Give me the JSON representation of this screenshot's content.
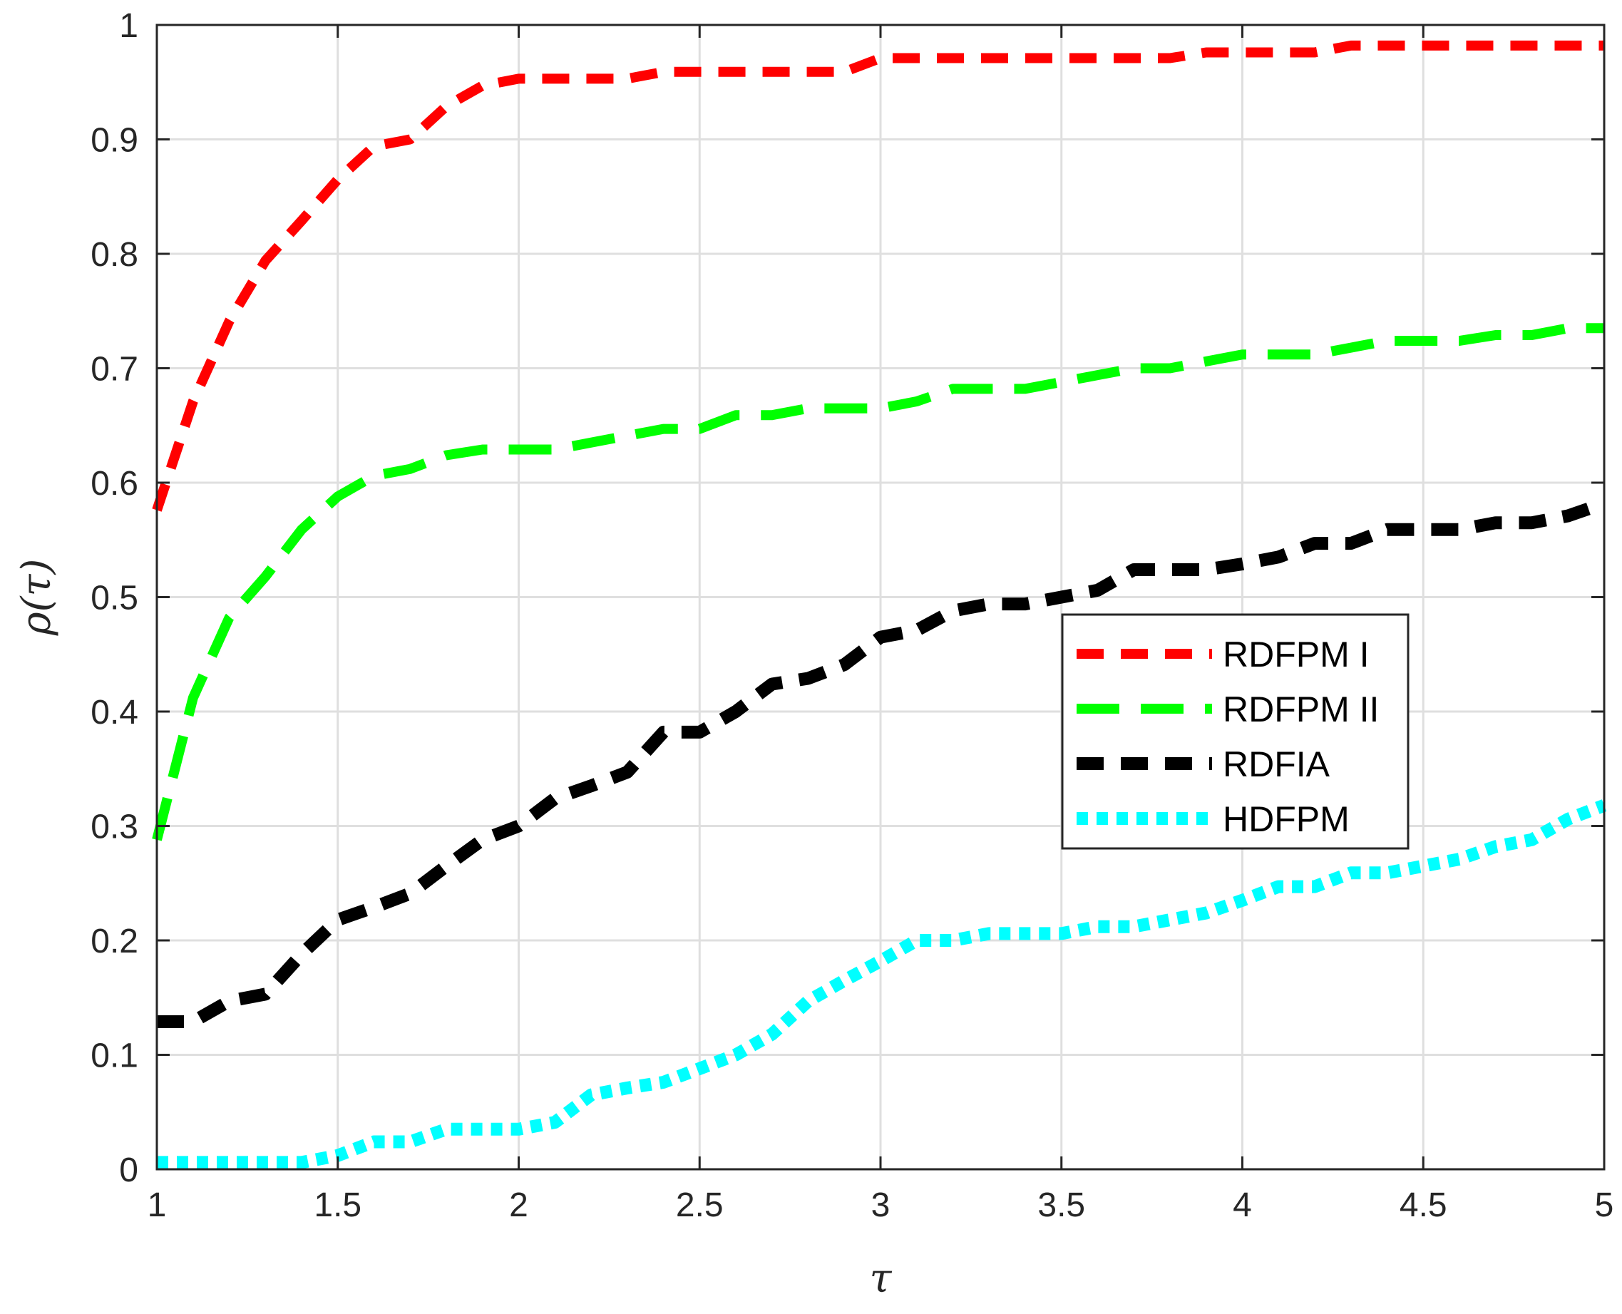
{
  "chart_data": {
    "type": "line",
    "xlabel": "τ",
    "ylabel": "ρ(τ)",
    "xlim": [
      1,
      5
    ],
    "ylim": [
      0,
      1
    ],
    "x_ticks": [
      "1",
      "1.5",
      "2",
      "2.5",
      "3",
      "3.5",
      "4",
      "4.5",
      "5"
    ],
    "y_ticks": [
      "0",
      "0.1",
      "0.2",
      "0.3",
      "0.4",
      "0.5",
      "0.6",
      "0.7",
      "0.8",
      "0.9",
      "1"
    ],
    "grid": true,
    "legend_position": "center-right",
    "series": [
      {
        "name": "RDFPM I",
        "color": "#ff0000",
        "style": "dashed",
        "x": [
          1.0,
          1.1,
          1.2,
          1.3,
          1.4,
          1.5,
          1.6,
          1.7,
          1.8,
          1.9,
          2.0,
          2.1,
          2.2,
          2.3,
          2.4,
          2.5,
          2.6,
          2.7,
          2.8,
          2.9,
          3.0,
          3.1,
          3.2,
          3.3,
          3.4,
          3.5,
          3.6,
          3.7,
          3.8,
          3.9,
          4.0,
          4.1,
          4.2,
          4.3,
          4.4,
          4.5,
          4.6,
          4.7,
          4.8,
          4.9,
          5.0
        ],
        "y": [
          0.576,
          0.671,
          0.741,
          0.794,
          0.829,
          0.865,
          0.894,
          0.9,
          0.929,
          0.947,
          0.953,
          0.953,
          0.953,
          0.953,
          0.959,
          0.959,
          0.959,
          0.959,
          0.959,
          0.959,
          0.971,
          0.971,
          0.971,
          0.971,
          0.971,
          0.971,
          0.971,
          0.971,
          0.971,
          0.976,
          0.976,
          0.976,
          0.976,
          0.982,
          0.982,
          0.982,
          0.982,
          0.982,
          0.982,
          0.982,
          0.982
        ]
      },
      {
        "name": "RDFPM II",
        "color": "#00ff00",
        "style": "long-dashed",
        "x": [
          1.0,
          1.1,
          1.2,
          1.3,
          1.4,
          1.5,
          1.6,
          1.7,
          1.8,
          1.9,
          2.0,
          2.1,
          2.2,
          2.3,
          2.4,
          2.5,
          2.6,
          2.7,
          2.8,
          2.9,
          3.0,
          3.1,
          3.2,
          3.3,
          3.4,
          3.5,
          3.6,
          3.7,
          3.8,
          3.9,
          4.0,
          4.1,
          4.2,
          4.3,
          4.4,
          4.5,
          4.6,
          4.7,
          4.8,
          4.9,
          5.0
        ],
        "y": [
          0.288,
          0.412,
          0.482,
          0.518,
          0.559,
          0.588,
          0.606,
          0.612,
          0.624,
          0.629,
          0.629,
          0.629,
          0.635,
          0.641,
          0.647,
          0.647,
          0.659,
          0.659,
          0.665,
          0.665,
          0.665,
          0.671,
          0.682,
          0.682,
          0.682,
          0.688,
          0.694,
          0.7,
          0.7,
          0.706,
          0.712,
          0.712,
          0.712,
          0.718,
          0.724,
          0.724,
          0.724,
          0.729,
          0.729,
          0.735,
          0.735
        ]
      },
      {
        "name": "RDFIA",
        "color": "#000000",
        "style": "dashed",
        "x": [
          1.0,
          1.1,
          1.2,
          1.3,
          1.4,
          1.5,
          1.6,
          1.7,
          1.8,
          1.9,
          2.0,
          2.1,
          2.2,
          2.3,
          2.4,
          2.5,
          2.6,
          2.7,
          2.8,
          2.9,
          3.0,
          3.1,
          3.2,
          3.3,
          3.4,
          3.5,
          3.6,
          3.7,
          3.8,
          3.9,
          4.0,
          4.1,
          4.2,
          4.3,
          4.4,
          4.5,
          4.6,
          4.7,
          4.8,
          4.9,
          5.0
        ],
        "y": [
          0.129,
          0.129,
          0.147,
          0.153,
          0.188,
          0.218,
          0.229,
          0.241,
          0.265,
          0.288,
          0.3,
          0.324,
          0.335,
          0.347,
          0.382,
          0.382,
          0.4,
          0.424,
          0.429,
          0.441,
          0.465,
          0.471,
          0.488,
          0.494,
          0.494,
          0.5,
          0.506,
          0.524,
          0.524,
          0.524,
          0.529,
          0.535,
          0.547,
          0.547,
          0.559,
          0.559,
          0.559,
          0.565,
          0.565,
          0.571,
          0.582
        ]
      },
      {
        "name": "HDFPM",
        "color": "#00ffff",
        "style": "dotted",
        "x": [
          1.0,
          1.1,
          1.2,
          1.3,
          1.4,
          1.5,
          1.6,
          1.7,
          1.8,
          1.9,
          2.0,
          2.1,
          2.2,
          2.3,
          2.4,
          2.5,
          2.6,
          2.7,
          2.8,
          2.9,
          3.0,
          3.1,
          3.2,
          3.3,
          3.4,
          3.5,
          3.6,
          3.7,
          3.8,
          3.9,
          4.0,
          4.1,
          4.2,
          4.3,
          4.4,
          4.5,
          4.6,
          4.7,
          4.8,
          4.9,
          5.0
        ],
        "y": [
          0.006,
          0.006,
          0.006,
          0.006,
          0.006,
          0.012,
          0.024,
          0.024,
          0.035,
          0.035,
          0.035,
          0.041,
          0.065,
          0.071,
          0.076,
          0.088,
          0.1,
          0.118,
          0.147,
          0.165,
          0.182,
          0.2,
          0.2,
          0.206,
          0.206,
          0.206,
          0.212,
          0.212,
          0.218,
          0.224,
          0.235,
          0.247,
          0.247,
          0.259,
          0.259,
          0.265,
          0.271,
          0.282,
          0.288,
          0.306,
          0.318
        ]
      }
    ]
  }
}
